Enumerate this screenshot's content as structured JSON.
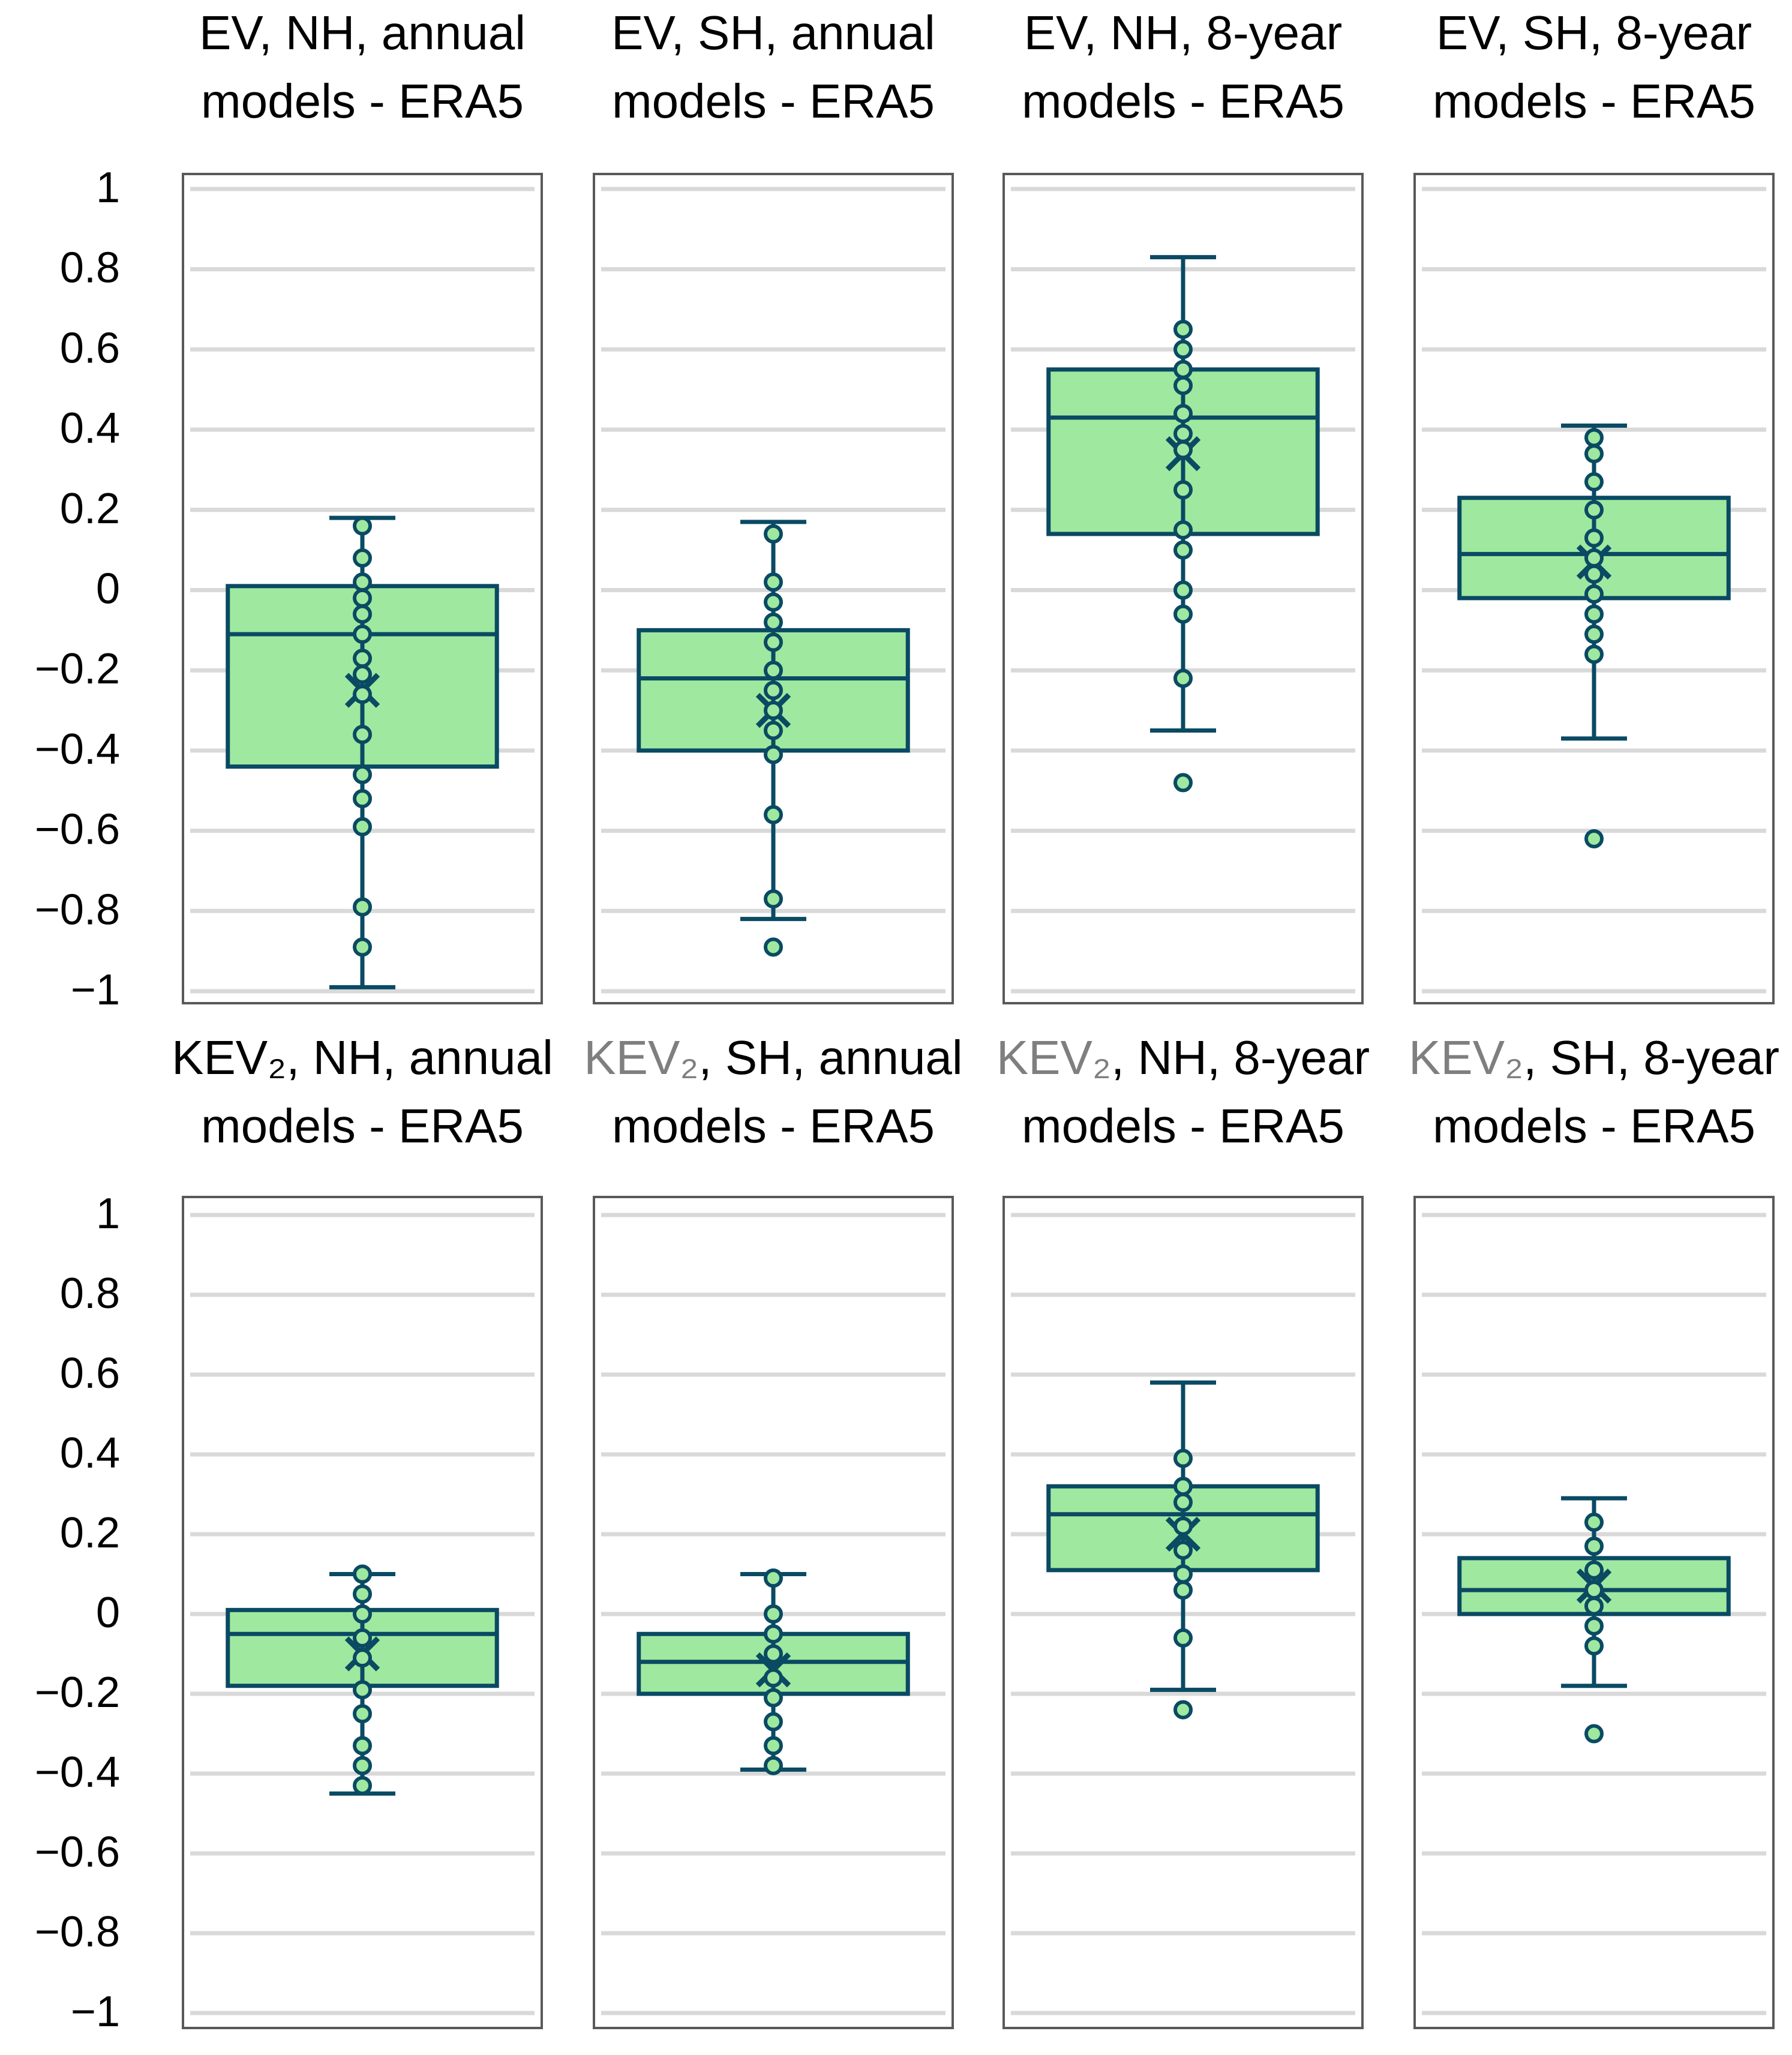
{
  "chart_data": [
    {
      "type": "box",
      "title_line1": "EV, NH, annual",
      "title_line2": "models - ERA5",
      "ylim": [
        -1,
        1
      ],
      "yticks": [
        "1",
        "0.8",
        "0.6",
        "0.4",
        "0.2",
        "0",
        "−0.2",
        "−0.4",
        "−0.6",
        "−0.8",
        "−1"
      ],
      "whisker_low": -0.99,
      "q1": -0.44,
      "median": -0.11,
      "q3": 0.01,
      "whisker_high": 0.18,
      "mean": -0.25,
      "points": [
        0.16,
        0.08,
        0.02,
        -0.02,
        -0.06,
        -0.11,
        -0.17,
        -0.21,
        -0.26,
        -0.36,
        -0.46,
        -0.52,
        -0.59,
        -0.79,
        -0.89
      ]
    },
    {
      "type": "box",
      "title_line1": "EV, SH, annual",
      "title_line2": "models - ERA5",
      "ylim": [
        -1,
        1
      ],
      "whisker_low": -0.82,
      "q1": -0.4,
      "median": -0.22,
      "q3": -0.1,
      "whisker_high": 0.17,
      "mean": -0.3,
      "points": [
        0.14,
        0.02,
        -0.03,
        -0.08,
        -0.13,
        -0.2,
        -0.25,
        -0.3,
        -0.35,
        -0.41,
        -0.56,
        -0.77,
        -0.89
      ]
    },
    {
      "type": "box",
      "title_line1": "EV, NH, 8-year",
      "title_line2": "models - ERA5",
      "ylim": [
        -1,
        1
      ],
      "whisker_low": -0.35,
      "q1": 0.14,
      "median": 0.43,
      "q3": 0.55,
      "whisker_high": 0.83,
      "mean": 0.34,
      "points": [
        0.65,
        0.6,
        0.55,
        0.51,
        0.44,
        0.39,
        0.35,
        0.25,
        0.15,
        0.1,
        0.0,
        -0.06,
        -0.22,
        -0.48
      ]
    },
    {
      "type": "box",
      "title_line1": "EV, SH, 8-year",
      "title_line2": "models - ERA5",
      "ylim": [
        -1,
        1
      ],
      "whisker_low": -0.37,
      "q1": -0.02,
      "median": 0.09,
      "q3": 0.23,
      "whisker_high": 0.41,
      "mean": 0.07,
      "points": [
        0.38,
        0.34,
        0.27,
        0.2,
        0.13,
        0.08,
        0.04,
        -0.01,
        -0.06,
        -0.11,
        -0.16,
        -0.62
      ]
    },
    {
      "type": "box",
      "title_line1": "KEV₂, NH, annual",
      "title_line2": "models - ERA5",
      "ylim": [
        -1,
        1
      ],
      "whisker_low": -0.45,
      "q1": -0.18,
      "median": -0.05,
      "q3": 0.01,
      "whisker_high": 0.1,
      "mean": -0.1,
      "points": [
        0.1,
        0.05,
        0.0,
        -0.06,
        -0.11,
        -0.19,
        -0.25,
        -0.33,
        -0.38,
        -0.43
      ]
    },
    {
      "type": "box",
      "title_line1": "KEV₂, SH, annual",
      "title_line2": "models - ERA5",
      "ylim": [
        -1,
        1
      ],
      "whisker_low": -0.39,
      "q1": -0.2,
      "median": -0.12,
      "q3": -0.05,
      "whisker_high": 0.1,
      "mean": -0.14,
      "points": [
        0.09,
        0.0,
        -0.05,
        -0.1,
        -0.16,
        -0.21,
        -0.27,
        -0.33,
        -0.38
      ]
    },
    {
      "type": "box",
      "title_line1": "KEV₂, NH, 8-year",
      "title_line2": "models - ERA5",
      "ylim": [
        -1,
        1
      ],
      "whisker_low": -0.19,
      "q1": 0.11,
      "median": 0.25,
      "q3": 0.32,
      "whisker_high": 0.58,
      "mean": 0.2,
      "points": [
        0.39,
        0.32,
        0.28,
        0.22,
        0.16,
        0.1,
        0.06,
        -0.06,
        -0.24
      ]
    },
    {
      "type": "box",
      "title_line1": "KEV₂, SH, 8-year",
      "title_line2": "models - ERA5",
      "ylim": [
        -1,
        1
      ],
      "whisker_low": -0.18,
      "q1": 0.0,
      "median": 0.06,
      "q3": 0.14,
      "whisker_high": 0.29,
      "mean": 0.07,
      "points": [
        0.23,
        0.17,
        0.11,
        0.06,
        0.02,
        -0.03,
        -0.08,
        -0.3
      ]
    }
  ],
  "colors": {
    "box_fill": "#9fe89f",
    "stroke": "#0a4a63",
    "grid": "#d9d9d9",
    "frame": "#595959",
    "text": "#000000",
    "title_grey": "#7f7f7f",
    "point_fill": "#9fe89f"
  }
}
